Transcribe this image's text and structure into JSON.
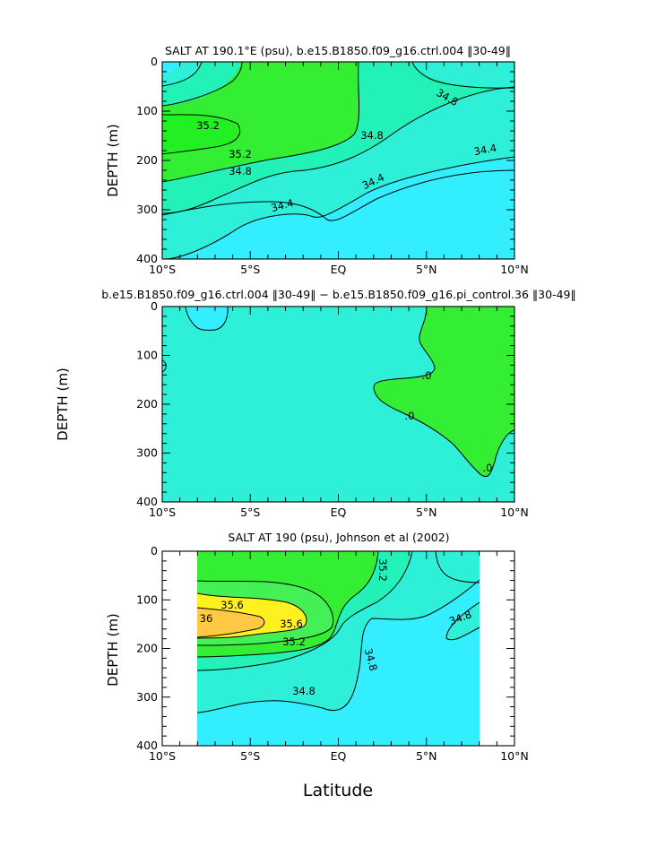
{
  "colors": {
    "cyan": "#33EEFF",
    "teal": "#2EF0D8",
    "aqua": "#22F2B8",
    "lime": "#33EE33",
    "green2": "#44F055",
    "yellow": "#FFF020",
    "orange": "#FFC845"
  },
  "xlabel": "Latitude",
  "chart_data": [
    {
      "type": "contour",
      "title": "SALT AT 190.1°E (psu), b.e15.B1850.f09_g16.ctrl.004 ‖30-49‖",
      "xlabel": "",
      "ylabel": "DEPTH (m)",
      "xlim": [
        -10,
        10
      ],
      "ylim": [
        400,
        0
      ],
      "x_ticks": [
        "10°S",
        "5°S",
        "EQ",
        "5°N",
        "10°N"
      ],
      "y_ticks": [
        "0",
        "100",
        "200",
        "300",
        "400"
      ],
      "contour_labels": [
        "35.2",
        "35.2",
        "34.8",
        "34.8",
        "34.8",
        "34.4",
        "34.4",
        "34.4"
      ]
    },
    {
      "type": "contour",
      "title": "b.e15.B1850.f09_g16.ctrl.004 ‖30-49‖ − b.e15.B1850.f09_g16.pi_control.36 ‖30-49‖",
      "xlabel": "",
      "ylabel": "DEPTH (m)",
      "xlim": [
        -10,
        10
      ],
      "ylim": [
        400,
        0
      ],
      "x_ticks": [
        "10°S",
        "5°S",
        "EQ",
        "5°N",
        "10°N"
      ],
      "y_ticks": [
        "0",
        "100",
        "200",
        "300",
        "400"
      ],
      "contour_labels": [
        ".0",
        ".0",
        ".0"
      ]
    },
    {
      "type": "contour",
      "title": "SALT AT 190 (psu), Johnson et al (2002)",
      "xlabel": "Latitude",
      "ylabel": "DEPTH (m)",
      "xlim": [
        -10,
        10
      ],
      "ylim": [
        400,
        0
      ],
      "data_xrange": [
        -8,
        8
      ],
      "x_ticks": [
        "10°S",
        "5°S",
        "EQ",
        "5°N",
        "10°N"
      ],
      "y_ticks": [
        "0",
        "100",
        "200",
        "300",
        "400"
      ],
      "contour_labels": [
        "35.6",
        "36",
        "35.6",
        "35.2",
        "35.2",
        "34.8",
        "34.8",
        "34.8"
      ]
    }
  ]
}
